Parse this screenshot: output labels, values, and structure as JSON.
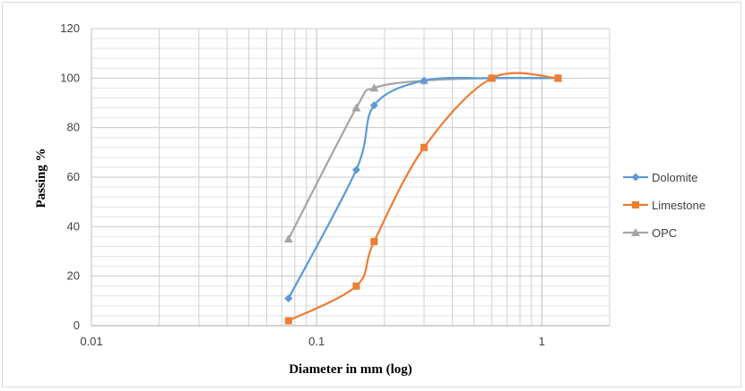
{
  "chart_data": {
    "type": "line",
    "title": "",
    "xlabel": "Diameter in mm (log)",
    "ylabel": "Passing %",
    "x_scale": "log",
    "xlim": [
      0.01,
      2
    ],
    "ylim": [
      0,
      120
    ],
    "x_ticks": [
      "0.01",
      "0.1",
      "1"
    ],
    "y_ticks": [
      "0",
      "20",
      "40",
      "60",
      "80",
      "100",
      "120"
    ],
    "grid": true,
    "legend_position": "right",
    "series": [
      {
        "name": "Dolomite",
        "color": "#5b9bd5",
        "marker": "diamond",
        "x": [
          0.075,
          0.15,
          0.18,
          0.3,
          0.6,
          1.18
        ],
        "y": [
          11,
          63,
          89,
          99,
          100,
          100
        ]
      },
      {
        "name": "Limestone",
        "color": "#ed7d31",
        "marker": "square",
        "x": [
          0.075,
          0.15,
          0.18,
          0.3,
          0.6,
          1.18
        ],
        "y": [
          2,
          16,
          34,
          72,
          100,
          100
        ]
      },
      {
        "name": "OPC",
        "color": "#a5a5a5",
        "marker": "triangle",
        "x": [
          0.075,
          0.15,
          0.18,
          0.3,
          0.6,
          1.18
        ],
        "y": [
          35,
          88,
          96,
          99,
          100,
          100
        ]
      }
    ]
  }
}
